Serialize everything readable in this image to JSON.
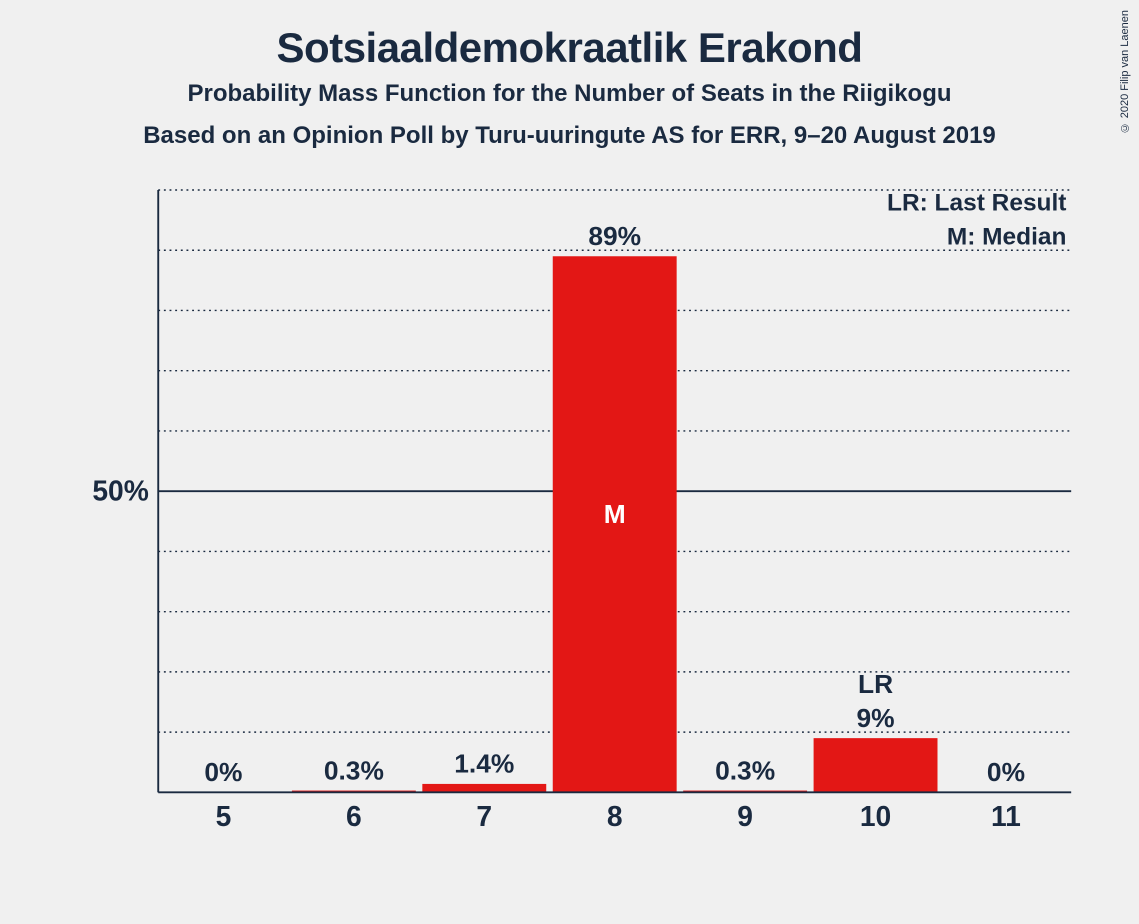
{
  "copyright": "© 2020 Filip van Laenen",
  "title": "Sotsiaaldemokraatlik Erakond",
  "subtitle1": "Probability Mass Function for the Number of Seats in the Riigikogu",
  "subtitle2": "Based on an Opinion Poll by Turu-uuringute AS for ERR, 9–20 August 2019",
  "legend": {
    "lr": "LR: Last Result",
    "m": "M: Median"
  },
  "chart": {
    "type": "bar",
    "bar_color": "#e31715",
    "background_color": "#f0f0f0",
    "text_color": "#1a2a40",
    "grid_dot_color": "#1a2a40",
    "ylim": [
      0,
      100
    ],
    "y_major_tick": 50,
    "y_minor_step": 10,
    "x_categories": [
      "5",
      "6",
      "7",
      "8",
      "9",
      "10",
      "11"
    ],
    "bars": [
      {
        "label": "0%",
        "value": 0,
        "annot": null,
        "inner": null
      },
      {
        "label": "0.3%",
        "value": 0.3,
        "annot": null,
        "inner": null
      },
      {
        "label": "1.4%",
        "value": 1.4,
        "annot": null,
        "inner": null
      },
      {
        "label": "89%",
        "value": 89,
        "annot": null,
        "inner": "M"
      },
      {
        "label": "0.3%",
        "value": 0.3,
        "annot": null,
        "inner": null
      },
      {
        "label": "9%",
        "value": 9,
        "annot": "LR",
        "inner": null
      },
      {
        "label": "0%",
        "value": 0,
        "annot": null,
        "inner": null
      }
    ],
    "bar_width_ratio": 0.95,
    "label_fontsize": 28,
    "tick_fontsize": 30,
    "title_fontsize": 42,
    "subtitle_fontsize": 24
  },
  "y_tick_label": "50%"
}
